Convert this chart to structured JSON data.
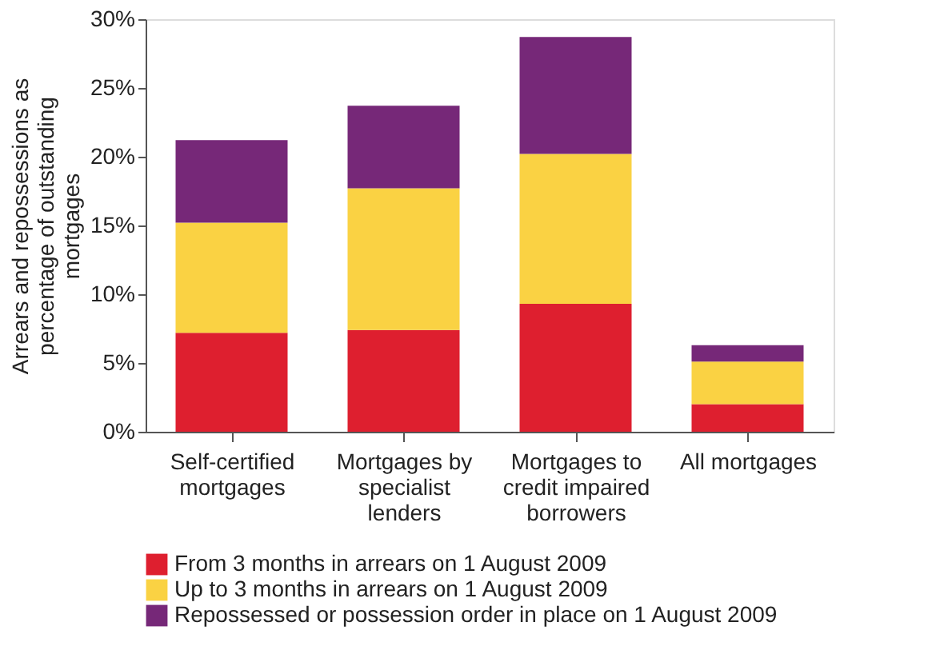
{
  "chart_data": {
    "type": "bar",
    "stacked": true,
    "ylabel": "Arrears and repossessions as percentage of outstanding mortgages",
    "categories": [
      "Self-certified mortgages",
      "Mortgages by specialist lenders",
      "Mortgages to credit impaired borrowers",
      "All mortgages"
    ],
    "series": [
      {
        "name": "From 3 months in arrears on 1 August 2009",
        "color": "#de1f2f",
        "values": [
          7.2,
          7.4,
          9.3,
          2.0
        ]
      },
      {
        "name": "Up to 3 months in arrears on 1 August 2009",
        "color": "#fad243",
        "values": [
          8.0,
          10.3,
          10.9,
          3.1
        ]
      },
      {
        "name": "Repossessed or possession order in place on 1 August 2009",
        "color": "#762878",
        "values": [
          6.0,
          6.0,
          8.5,
          1.2
        ]
      }
    ],
    "ylim": [
      0,
      30
    ],
    "yticks": [
      {
        "value": 0,
        "label": "0%"
      },
      {
        "value": 5,
        "label": "5%"
      },
      {
        "value": 10,
        "label": "10%"
      },
      {
        "value": 15,
        "label": "15%"
      },
      {
        "value": 20,
        "label": "20%"
      },
      {
        "value": 25,
        "label": "25%"
      },
      {
        "value": 30,
        "label": "30%"
      }
    ],
    "grid": false,
    "legend": "bottom"
  }
}
